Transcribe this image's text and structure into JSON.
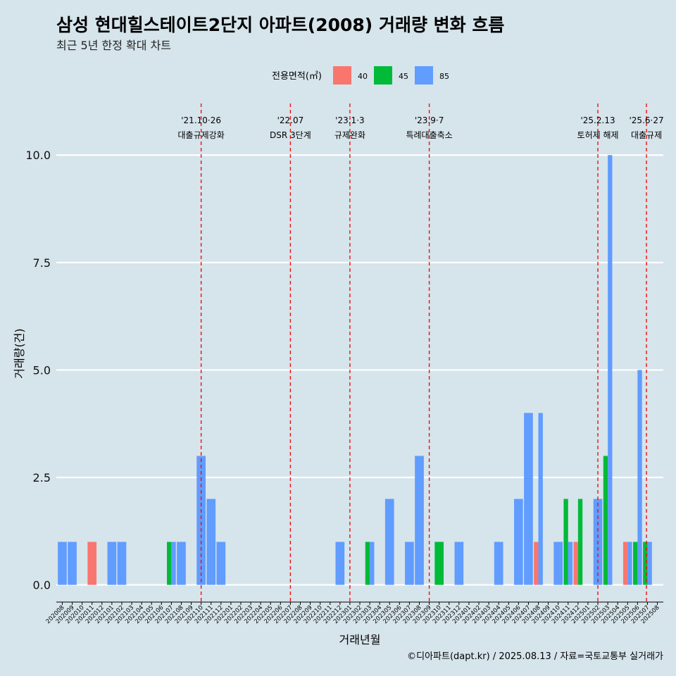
{
  "chart_data": {
    "type": "bar",
    "title": "삼성 현대힐스테이트2단지 아파트(2008) 거래량 변화 흐름",
    "subtitle": "최근 5년 한정 확대 차트",
    "xlabel": "거래년월",
    "ylabel": "거래량(건)",
    "ylim": [
      -0.4,
      11.2
    ],
    "yticks": [
      0.0,
      2.5,
      5.0,
      7.5,
      10.0
    ],
    "ytick_labels": [
      "0.0",
      "2.5",
      "5.0",
      "7.5",
      "10.0"
    ],
    "grid": "horizontal",
    "legend": {
      "title": "전용면적(㎡)",
      "placement": "top",
      "entries": [
        {
          "label": "40",
          "color": "#f8766d"
        },
        {
          "label": "45",
          "color": "#00ba38"
        },
        {
          "label": "85",
          "color": "#619cff"
        }
      ]
    },
    "categories": [
      "202008",
      "202009",
      "202010",
      "202011",
      "202012",
      "202101",
      "202102",
      "202103",
      "202104",
      "202105",
      "202106",
      "202107",
      "202108",
      "202109",
      "202110",
      "202111",
      "202112",
      "202201",
      "202202",
      "202203",
      "202204",
      "202205",
      "202206",
      "202207",
      "202208",
      "202209",
      "202210",
      "202211",
      "202212",
      "202301",
      "202302",
      "202303",
      "202304",
      "202305",
      "202306",
      "202307",
      "202308",
      "202309",
      "202310",
      "202311",
      "202312",
      "202401",
      "202402",
      "202403",
      "202404",
      "202405",
      "202406",
      "202407",
      "202408",
      "202409",
      "202410",
      "202411",
      "202412",
      "202501",
      "202502",
      "202503",
      "202504",
      "202505",
      "202506",
      "202507",
      "202508"
    ],
    "bars": [
      {
        "month": "202008",
        "area": "85",
        "value": 1
      },
      {
        "month": "202009",
        "area": "85",
        "value": 1
      },
      {
        "month": "202011",
        "area": "40",
        "value": 1
      },
      {
        "month": "202101",
        "area": "85",
        "value": 1
      },
      {
        "month": "202102",
        "area": "85",
        "value": 1
      },
      {
        "month": "202107",
        "area": "45",
        "value": 1
      },
      {
        "month": "202107",
        "area": "85",
        "value": 1
      },
      {
        "month": "202108",
        "area": "85",
        "value": 1
      },
      {
        "month": "202110",
        "area": "85",
        "value": 3
      },
      {
        "month": "202111",
        "area": "85",
        "value": 2
      },
      {
        "month": "202112",
        "area": "85",
        "value": 1
      },
      {
        "month": "202212",
        "area": "85",
        "value": 1
      },
      {
        "month": "202303",
        "area": "45",
        "value": 1
      },
      {
        "month": "202303",
        "area": "85",
        "value": 1
      },
      {
        "month": "202305",
        "area": "85",
        "value": 2
      },
      {
        "month": "202307",
        "area": "85",
        "value": 1
      },
      {
        "month": "202308",
        "area": "85",
        "value": 3
      },
      {
        "month": "202310",
        "area": "45",
        "value": 1
      },
      {
        "month": "202312",
        "area": "85",
        "value": 1
      },
      {
        "month": "202404",
        "area": "85",
        "value": 1
      },
      {
        "month": "202406",
        "area": "85",
        "value": 2
      },
      {
        "month": "202407",
        "area": "85",
        "value": 4
      },
      {
        "month": "202408",
        "area": "40",
        "value": 1
      },
      {
        "month": "202408",
        "area": "85",
        "value": 4
      },
      {
        "month": "202410",
        "area": "85",
        "value": 1
      },
      {
        "month": "202411",
        "area": "45",
        "value": 2
      },
      {
        "month": "202411",
        "area": "85",
        "value": 1
      },
      {
        "month": "202412",
        "area": "40",
        "value": 1
      },
      {
        "month": "202412",
        "area": "45",
        "value": 2
      },
      {
        "month": "202502",
        "area": "85",
        "value": 2
      },
      {
        "month": "202503",
        "area": "45",
        "value": 3
      },
      {
        "month": "202503",
        "area": "85",
        "value": 10
      },
      {
        "month": "202505",
        "area": "40",
        "value": 1
      },
      {
        "month": "202505",
        "area": "85",
        "value": 1
      },
      {
        "month": "202506",
        "area": "45",
        "value": 1
      },
      {
        "month": "202506",
        "area": "85",
        "value": 5
      },
      {
        "month": "202507",
        "area": "45",
        "value": 1
      },
      {
        "month": "202507",
        "area": "85",
        "value": 1
      }
    ],
    "events": [
      {
        "x": 14.0,
        "date": "'21.10·26",
        "label": "대출규제강화"
      },
      {
        "x": 23.0,
        "date": "'22.07",
        "label": "DSR 3단계"
      },
      {
        "x": 29.0,
        "date": "'23.1·3",
        "label": "규제완화"
      },
      {
        "x": 37.0,
        "date": "'23.9·7",
        "label": "특례대출축소"
      },
      {
        "x": 54.0,
        "date": "'25.2.13",
        "label": "토허제 해제"
      },
      {
        "x": 58.9,
        "date": "'25.6·27",
        "label": "대출규제"
      }
    ],
    "caption": "©디아파트(dapt.kr) / 2025.08.13 / 자료=국토교통부 실거래가"
  }
}
